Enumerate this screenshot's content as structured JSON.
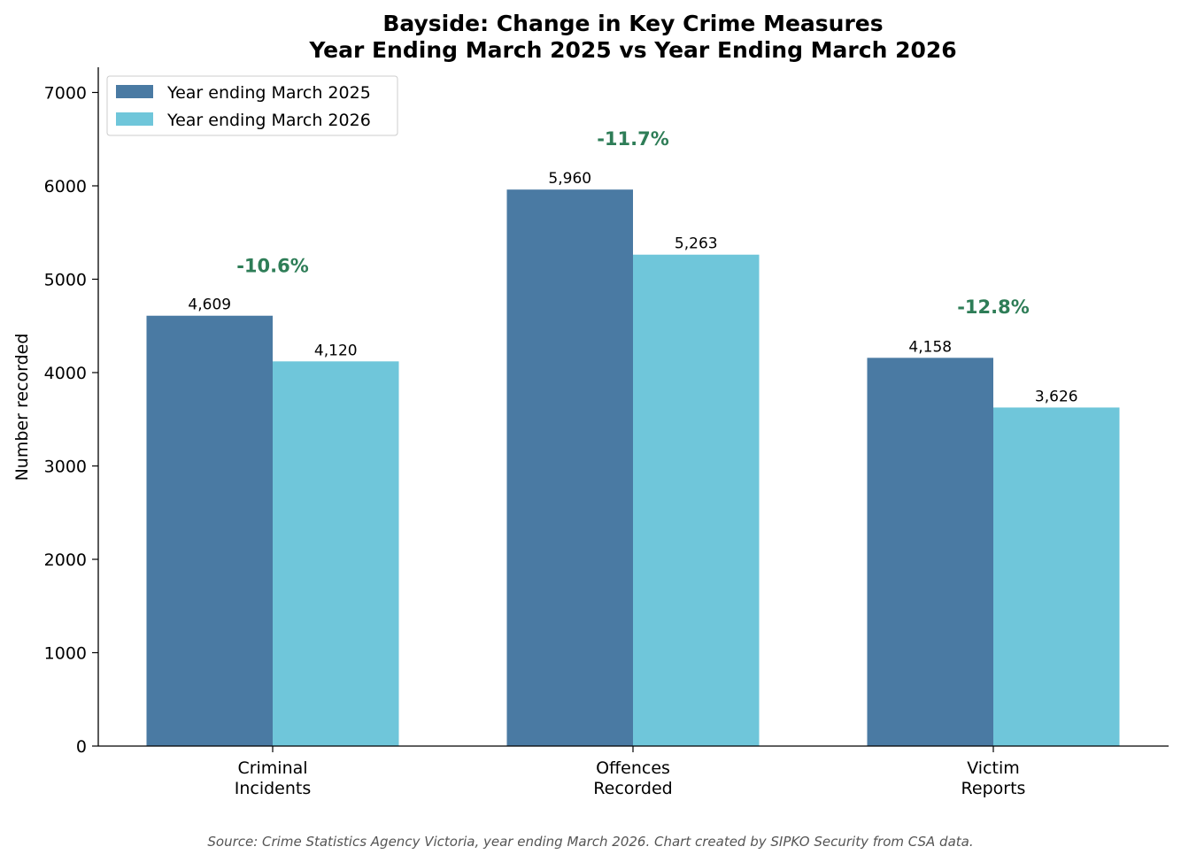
{
  "chart_data": {
    "type": "bar",
    "title": "Bayside: Change in Key Crime Measures",
    "subtitle": "Year Ending March 2025 vs Year Ending March 2026",
    "xlabel": "",
    "ylabel": "Number recorded",
    "ylim": [
      0,
      7270
    ],
    "yticks": [
      0,
      1000,
      2000,
      3000,
      4000,
      5000,
      6000,
      7000
    ],
    "categories": [
      [
        "Criminal",
        "Incidents"
      ],
      [
        "Offences",
        "Recorded"
      ],
      [
        "Victim",
        "Reports"
      ]
    ],
    "series": [
      {
        "name": "Year ending March 2025",
        "color": "#4a7aa3",
        "values": [
          4609,
          5960,
          4158
        ],
        "labels": [
          "4,609",
          "5,960",
          "4,158"
        ]
      },
      {
        "name": "Year ending March 2026",
        "color": "#6fc6da",
        "values": [
          4120,
          5263,
          3626
        ],
        "labels": [
          "4,120",
          "5,263",
          "3,626"
        ]
      }
    ],
    "changes": [
      {
        "label": "-10.6%",
        "value": 5150
      },
      {
        "label": "-11.7%",
        "value": 6510
      },
      {
        "label": "-12.8%",
        "value": 4710
      }
    ],
    "change_color": "#2e7d57",
    "legend_position": "top-left",
    "grid": false
  },
  "source_note": "Source: Crime Statistics Agency Victoria, year ending March 2026. Chart created by SIPKO Security from CSA data."
}
